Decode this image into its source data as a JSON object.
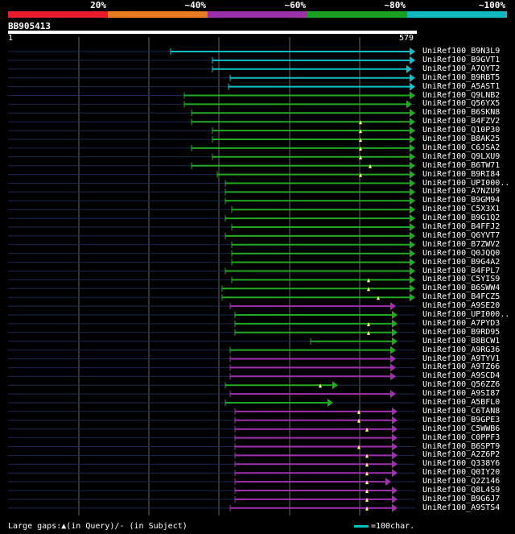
{
  "legend": [
    {
      "label": "20%",
      "color": "#e81c2b"
    },
    {
      "label": "~40%",
      "color": "#e87a20"
    },
    {
      "label": "~60%",
      "color": "#9b30a8"
    },
    {
      "label": "~80%",
      "color": "#1aa020"
    },
    {
      "label": "~100%",
      "color": "#10b8c0"
    }
  ],
  "query": {
    "name": "BB905413",
    "start": "1",
    "end": "579"
  },
  "grid_color": "#666666",
  "hits": [
    {
      "label": "UniRef100_B9N3L9",
      "color": "cyan"
    },
    {
      "label": "UniRef100_B9GVT1",
      "color": "cyan"
    },
    {
      "label": "UniRef100_A7QYT2",
      "color": "cyan"
    },
    {
      "label": "UniRef100_B9RBT5",
      "color": "cyan"
    },
    {
      "label": "UniRef100_A5AST1",
      "color": "cyan"
    },
    {
      "label": "UniRef100_Q9LNB2",
      "color": "green"
    },
    {
      "label": "UniRef100_Q56YX5",
      "color": "green"
    },
    {
      "label": "UniRef100_B6SKN8",
      "color": "green"
    },
    {
      "label": "UniRef100_B4FZV2",
      "color": "green"
    },
    {
      "label": "UniRef100_Q10P30",
      "color": "green"
    },
    {
      "label": "UniRef100_B8AK25",
      "color": "green"
    },
    {
      "label": "UniRef100_C6JSA2",
      "color": "green"
    },
    {
      "label": "UniRef100_Q9LXU9",
      "color": "green"
    },
    {
      "label": "UniRef100_B6TW71",
      "color": "green"
    },
    {
      "label": "UniRef100_B9RI84",
      "color": "green"
    },
    {
      "label": "UniRef100_UPI000..",
      "color": "green"
    },
    {
      "label": "UniRef100_A7NZU9",
      "color": "green"
    },
    {
      "label": "UniRef100_B9GM94",
      "color": "green"
    },
    {
      "label": "UniRef100_C5X3X1",
      "color": "green"
    },
    {
      "label": "UniRef100_B9G1Q2",
      "color": "green"
    },
    {
      "label": "UniRef100_B4FFJ2",
      "color": "green"
    },
    {
      "label": "UniRef100_Q6YVT7",
      "color": "green"
    },
    {
      "label": "UniRef100_B7ZWV2",
      "color": "green"
    },
    {
      "label": "UniRef100_Q0JQQ0",
      "color": "green"
    },
    {
      "label": "UniRef100_B9G4A2",
      "color": "green"
    },
    {
      "label": "UniRef100_B4FPL7",
      "color": "green"
    },
    {
      "label": "UniRef100_C5YIS9",
      "color": "green"
    },
    {
      "label": "UniRef100_B6SWW4",
      "color": "green"
    },
    {
      "label": "UniRef100_B4FCZ5",
      "color": "green"
    },
    {
      "label": "UniRef100_A9SE20",
      "color": "purple"
    },
    {
      "label": "UniRef100_UPI000..",
      "color": "green"
    },
    {
      "label": "UniRef100_A7PYD3",
      "color": "green"
    },
    {
      "label": "UniRef100_B9RD95",
      "color": "green"
    },
    {
      "label": "UniRef100_B8BCW1",
      "color": "green"
    },
    {
      "label": "UniRef100_A9RG36",
      "color": "green"
    },
    {
      "label": "UniRef100_A9TYV1",
      "color": "purple"
    },
    {
      "label": "UniRef100_A9TZ66",
      "color": "purple"
    },
    {
      "label": "UniRef100_A9SCD4",
      "color": "purple"
    },
    {
      "label": "UniRef100_Q56ZZ6",
      "color": "green"
    },
    {
      "label": "UniRef100_A9SI87",
      "color": "purple"
    },
    {
      "label": "UniRef100_A5BFL0",
      "color": "green"
    },
    {
      "label": "UniRef100_C6TAN8",
      "color": "purple"
    },
    {
      "label": "UniRef100_B9GPE3",
      "color": "purple"
    },
    {
      "label": "UniRef100_C5WWB6",
      "color": "purple"
    },
    {
      "label": "UniRef100_C0PPF3",
      "color": "purple"
    },
    {
      "label": "UniRef100_B6SPT9",
      "color": "purple"
    },
    {
      "label": "UniRef100_A2Z6P2",
      "color": "purple"
    },
    {
      "label": "UniRef100_Q338Y6",
      "color": "purple"
    },
    {
      "label": "UniRef100_Q0IY20",
      "color": "purple"
    },
    {
      "label": "UniRef100_Q2Z146",
      "color": "purple"
    },
    {
      "label": "UniRef100_Q8L4S9",
      "color": "purple"
    },
    {
      "label": "UniRef100_B9G6J7",
      "color": "purple"
    },
    {
      "label": "UniRef100_A9STS4",
      "color": "purple"
    }
  ],
  "footer": {
    "gaps": "Large gaps:▲(in Query)/- (in Subject)",
    "scale": "=100char."
  }
}
